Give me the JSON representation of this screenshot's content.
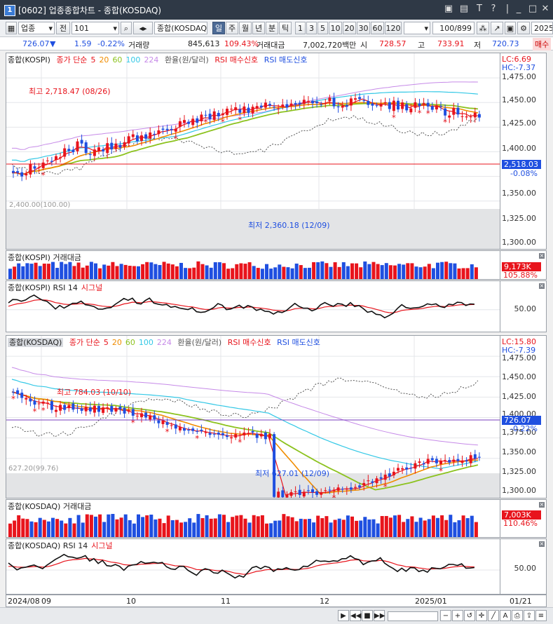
{
  "window": {
    "title": "[0602] 업종종합차트 - 종합(KOSDAQ)",
    "app_number": "1"
  },
  "toolbar": {
    "market": "업종",
    "prefix": "전",
    "code": "101",
    "name": "종합(KOSDAQ)",
    "periods": [
      "일",
      "주",
      "월",
      "년",
      "분",
      "틱"
    ],
    "active_period": "일",
    "intervals": [
      "1",
      "3",
      "5",
      "10",
      "20",
      "30",
      "60",
      "120"
    ],
    "count": "100/899",
    "date": "2025",
    "right_label": "매수"
  },
  "quote": {
    "price": "726.07",
    "direction": "▼",
    "change": "1.59",
    "change_pct": "-0.22%",
    "volume_label": "거래량",
    "volume": "845,613",
    "volume_ratio": "109.43%",
    "amount_label": "거래대금",
    "amount": "7,002,720백만",
    "open_label": "시",
    "open": "728.57",
    "high_label": "고",
    "high": "733.91",
    "low_label": "저",
    "low": "720.73"
  },
  "kospi_price": {
    "legend": {
      "name": "종합(KOSPI)",
      "ma_label": "종가 단순",
      "ma5": "5",
      "ma20": "20",
      "ma60": "60",
      "ma100": "100",
      "ma224": "224",
      "fx": "환율(원/달러)",
      "rsi_buy": "RSI 매수신호",
      "rsi_sell": "RSI 매도신호"
    },
    "lc": "LC:6.69",
    "hc": "HC:-7.37",
    "ticks": [
      "1,475.00",
      "1,450.00",
      "1,425.00",
      "1,400.00",
      "1,375.00",
      "1,350.00",
      "1,325.00",
      "1,300.00"
    ],
    "current_price": "2,518.03",
    "current_pct": "-0.08%",
    "high_annot": "최고 2,718.47 (08/26)",
    "low_annot": "최저 2,360.18 (12/09)",
    "left_scale": "2,400.00(100.00)"
  },
  "kospi_amount": {
    "legend": "종합(KOSPI) 거래대금",
    "value": "9,173K",
    "pct": "105.88%"
  },
  "kospi_rsi": {
    "legend": "종합(KOSPI) RSI 14",
    "signal": "시그널",
    "tick": "50.00"
  },
  "kosdaq_price": {
    "legend": {
      "name": "종합(KOSDAQ)",
      "ma_label": "종가 단순",
      "ma5": "5",
      "ma20": "20",
      "ma60": "60",
      "ma100": "100",
      "ma224": "224",
      "fx": "환율(원/달러)",
      "rsi_buy": "RSI 매수신호",
      "rsi_sell": "RSI 매도신호"
    },
    "lc": "LC:15.80",
    "hc": "HC:-7.39",
    "ticks": [
      "1,475.00",
      "1,450.00",
      "1,425.00",
      "1,400.00",
      "1,375.00",
      "1,350.00",
      "1,325.00",
      "1,300.00"
    ],
    "current_price": "726.07",
    "current_pct": "-0.22%",
    "high_annot": "최고 784.03 (10/10)",
    "low_annot": "최저 627.01 (12/09)",
    "left_scale": "627.20(99.76)"
  },
  "kosdaq_amount": {
    "legend": "종합(KOSDAQ) 거래대금",
    "value": "7,003K",
    "pct": "110.46%"
  },
  "kosdaq_rsi": {
    "legend": "종합(KOSDAQ) RSI 14",
    "signal": "시그널",
    "tick": "50.00"
  },
  "xaxis": {
    "labels": [
      "2024/08",
      "09",
      "10",
      "11",
      "12",
      "2025/01",
      "01/21"
    ]
  },
  "colors": {
    "up": "#e8141c",
    "down": "#1f4fe0",
    "ma5": "#e8141c",
    "ma20": "#f08c00",
    "ma60": "#8cc21e",
    "ma100": "#33c8e6",
    "ma224": "#c68ae8",
    "fx": "#555555"
  }
}
